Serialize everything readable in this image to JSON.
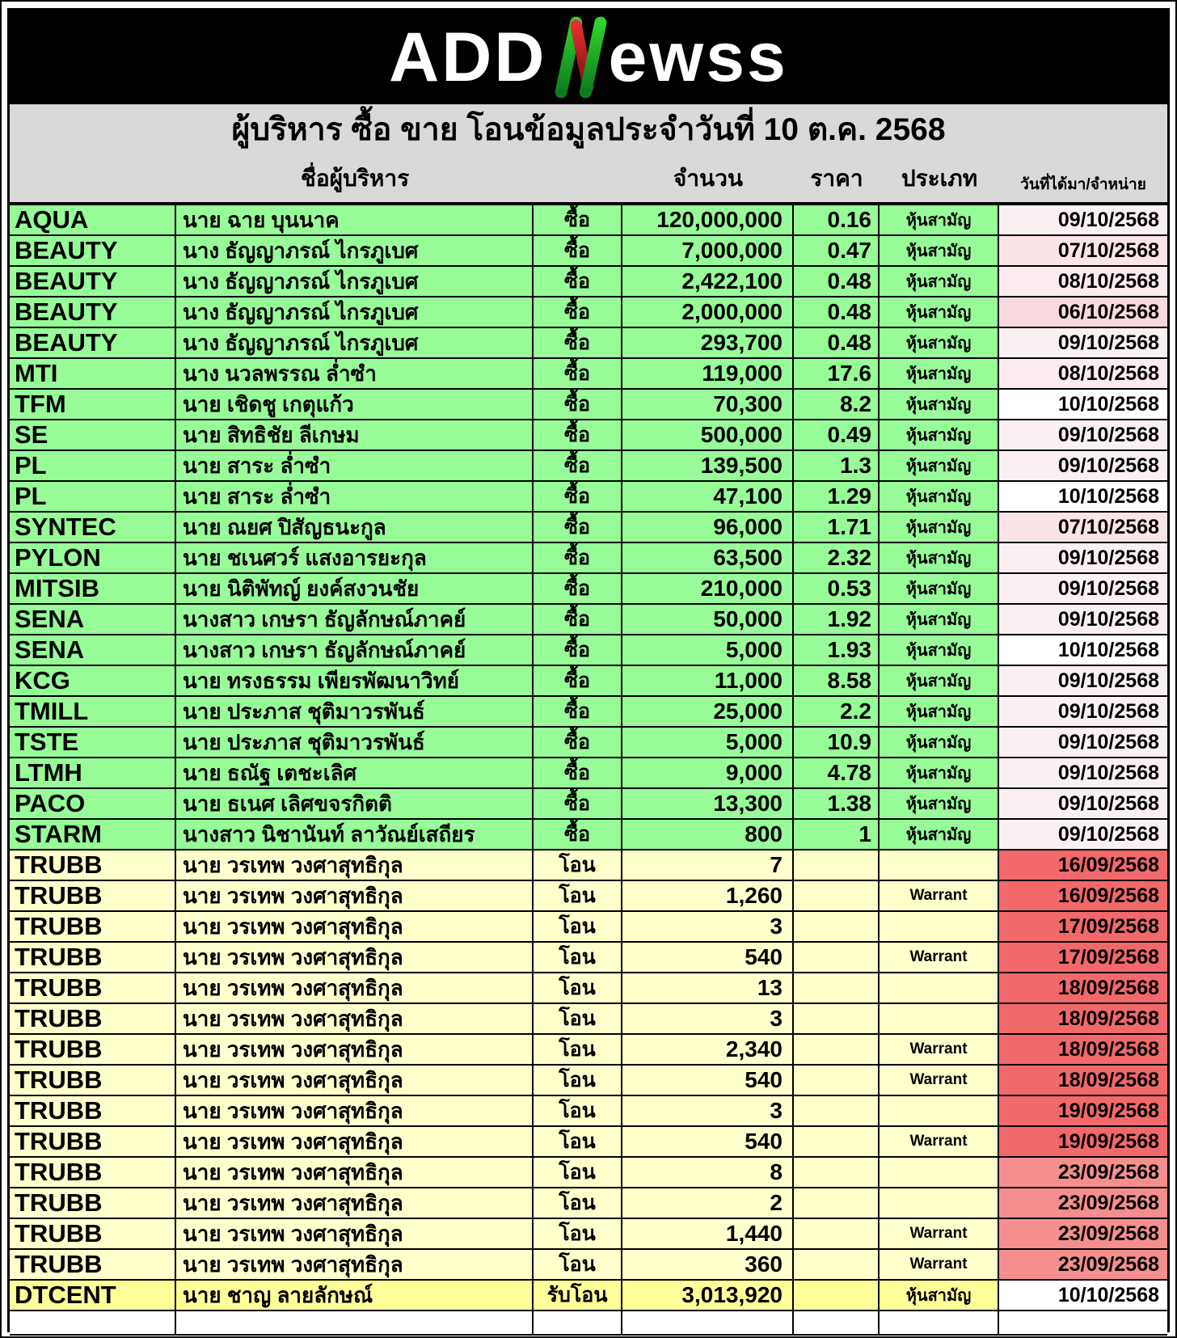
{
  "logo": {
    "left": "ADD",
    "right": "ewss"
  },
  "title": "ผู้บริหาร ซื้อ ขาย โอนข้อมูลประจำวันที่ 10 ต.ค. 2568",
  "columns": {
    "name": "ชื่อผู้บริหาร",
    "amount": "จำนวน",
    "price": "ราคา",
    "type": "ประเภท",
    "date": "วันที่ได้มา/จำหน่าย"
  },
  "colors": {
    "row_green": "#97FB98",
    "row_pale_yellow": "#FFFFCC",
    "row_bright_yellow": "#FFFF99",
    "header_gray": "#D9D9D9",
    "date_red": "#F2696B",
    "date_red_light": "#F58F8F",
    "logo_green": "#2FD32F",
    "logo_dark_green": "#0E7A1E",
    "logo_red": "#C22126"
  },
  "rows": [
    {
      "ticker": "AQUA",
      "name": "นาย ฉาย บุนนาค",
      "action": "ซื้อ",
      "amount": "120,000,000",
      "price": "0.16",
      "sec_type": "หุ้นสามัญ",
      "date": "09/10/2568",
      "row_bg": "#97FB98",
      "date_bg": "#FAF0F2"
    },
    {
      "ticker": "BEAUTY",
      "name": "นาง ธัญญาภรณ์ ไกรภูเบศ",
      "action": "ซื้อ",
      "amount": "7,000,000",
      "price": "0.47",
      "sec_type": "หุ้นสามัญ",
      "date": "07/10/2568",
      "row_bg": "#97FB98",
      "date_bg": "#FBE4E7"
    },
    {
      "ticker": "BEAUTY",
      "name": "นาง ธัญญาภรณ์ ไกรภูเบศ",
      "action": "ซื้อ",
      "amount": "2,422,100",
      "price": "0.48",
      "sec_type": "หุ้นสามัญ",
      "date": "08/10/2568",
      "row_bg": "#97FB98",
      "date_bg": "#FBEBEE"
    },
    {
      "ticker": "BEAUTY",
      "name": "นาง ธัญญาภรณ์ ไกรภูเบศ",
      "action": "ซื้อ",
      "amount": "2,000,000",
      "price": "0.48",
      "sec_type": "หุ้นสามัญ",
      "date": "06/10/2568",
      "row_bg": "#97FB98",
      "date_bg": "#F8D9DD"
    },
    {
      "ticker": "BEAUTY",
      "name": "นาง ธัญญาภรณ์ ไกรภูเบศ",
      "action": "ซื้อ",
      "amount": "293,700",
      "price": "0.48",
      "sec_type": "หุ้นสามัญ",
      "date": "09/10/2568",
      "row_bg": "#97FB98",
      "date_bg": "#FAF0F2"
    },
    {
      "ticker": "MTI",
      "name": "นาง นวลพรรณ ล่ำซำ",
      "action": "ซื้อ",
      "amount": "119,000",
      "price": "17.6",
      "sec_type": "หุ้นสามัญ",
      "date": "08/10/2568",
      "row_bg": "#97FB98",
      "date_bg": "#FBEBEE"
    },
    {
      "ticker": "TFM",
      "name": "นาย เชิดชู เกตุแก้ว",
      "action": "ซื้อ",
      "amount": "70,300",
      "price": "8.2",
      "sec_type": "หุ้นสามัญ",
      "date": "10/10/2568",
      "row_bg": "#97FB98",
      "date_bg": "#FFFFFF"
    },
    {
      "ticker": "SE",
      "name": "นาย สิทธิชัย ลีเกษม",
      "action": "ซื้อ",
      "amount": "500,000",
      "price": "0.49",
      "sec_type": "หุ้นสามัญ",
      "date": "09/10/2568",
      "row_bg": "#97FB98",
      "date_bg": "#FAF0F2"
    },
    {
      "ticker": "PL",
      "name": "นาย สาระ ล่ำซำ",
      "action": "ซื้อ",
      "amount": "139,500",
      "price": "1.3",
      "sec_type": "หุ้นสามัญ",
      "date": "09/10/2568",
      "row_bg": "#97FB98",
      "date_bg": "#FAF0F2"
    },
    {
      "ticker": "PL",
      "name": "นาย สาระ ล่ำซำ",
      "action": "ซื้อ",
      "amount": "47,100",
      "price": "1.29",
      "sec_type": "หุ้นสามัญ",
      "date": "10/10/2568",
      "row_bg": "#97FB98",
      "date_bg": "#FFFFFF"
    },
    {
      "ticker": "SYNTEC",
      "name": "นาย ณยศ ปิสัญธนะกูล",
      "action": "ซื้อ",
      "amount": "96,000",
      "price": "1.71",
      "sec_type": "หุ้นสามัญ",
      "date": "07/10/2568",
      "row_bg": "#97FB98",
      "date_bg": "#FBE4E7"
    },
    {
      "ticker": "PYLON",
      "name": "นาย ชเนศวร์ แสงอารยะกุล",
      "action": "ซื้อ",
      "amount": "63,500",
      "price": "2.32",
      "sec_type": "หุ้นสามัญ",
      "date": "09/10/2568",
      "row_bg": "#97FB98",
      "date_bg": "#FAF0F2"
    },
    {
      "ticker": "MITSIB",
      "name": "นาย นิติพัทญ์ ยงค์สงวนชัย",
      "action": "ซื้อ",
      "amount": "210,000",
      "price": "0.53",
      "sec_type": "หุ้นสามัญ",
      "date": "09/10/2568",
      "row_bg": "#97FB98",
      "date_bg": "#FAF0F2"
    },
    {
      "ticker": "SENA",
      "name": "นางสาว เกษรา ธัญลักษณ์ภาคย์",
      "action": "ซื้อ",
      "amount": "50,000",
      "price": "1.92",
      "sec_type": "หุ้นสามัญ",
      "date": "09/10/2568",
      "row_bg": "#97FB98",
      "date_bg": "#FAF0F2"
    },
    {
      "ticker": "SENA",
      "name": "นางสาว เกษรา ธัญลักษณ์ภาคย์",
      "action": "ซื้อ",
      "amount": "5,000",
      "price": "1.93",
      "sec_type": "หุ้นสามัญ",
      "date": "10/10/2568",
      "row_bg": "#97FB98",
      "date_bg": "#FFFFFF"
    },
    {
      "ticker": "KCG",
      "name": "นาย ทรงธรรม เพียรพัฒนาวิทย์",
      "action": "ซื้อ",
      "amount": "11,000",
      "price": "8.58",
      "sec_type": "หุ้นสามัญ",
      "date": "09/10/2568",
      "row_bg": "#97FB98",
      "date_bg": "#FAF0F2"
    },
    {
      "ticker": "TMILL",
      "name": "นาย ประภาส ชุติมาวรพันธ์",
      "action": "ซื้อ",
      "amount": "25,000",
      "price": "2.2",
      "sec_type": "หุ้นสามัญ",
      "date": "09/10/2568",
      "row_bg": "#97FB98",
      "date_bg": "#FAF0F2"
    },
    {
      "ticker": "TSTE",
      "name": "นาย ประภาส ชุติมาวรพันธ์",
      "action": "ซื้อ",
      "amount": "5,000",
      "price": "10.9",
      "sec_type": "หุ้นสามัญ",
      "date": "09/10/2568",
      "row_bg": "#97FB98",
      "date_bg": "#FAF0F2"
    },
    {
      "ticker": "LTMH",
      "name": "นาย ธณัฐ เตชะเลิศ",
      "action": "ซื้อ",
      "amount": "9,000",
      "price": "4.78",
      "sec_type": "หุ้นสามัญ",
      "date": "09/10/2568",
      "row_bg": "#97FB98",
      "date_bg": "#FAF0F2"
    },
    {
      "ticker": "PACO",
      "name": "นาย ธเนศ เลิศขจรกิตติ",
      "action": "ซื้อ",
      "amount": "13,300",
      "price": "1.38",
      "sec_type": "หุ้นสามัญ",
      "date": "09/10/2568",
      "row_bg": "#97FB98",
      "date_bg": "#FAF0F2"
    },
    {
      "ticker": "STARM",
      "name": "นางสาว นิชานันท์ ลาวัณย์เสถียร",
      "action": "ซื้อ",
      "amount": "800",
      "price": "1",
      "sec_type": "หุ้นสามัญ",
      "date": "09/10/2568",
      "row_bg": "#97FB98",
      "date_bg": "#FAF0F2"
    },
    {
      "ticker": "TRUBB",
      "name": "นาย วรเทพ วงศาสุทธิกุล",
      "action": "โอน",
      "amount": "7",
      "price": "",
      "sec_type": "",
      "date": "16/09/2568",
      "row_bg": "#FFFFCC",
      "date_bg": "#F2696B"
    },
    {
      "ticker": "TRUBB",
      "name": "นาย วรเทพ วงศาสุทธิกุล",
      "action": "โอน",
      "amount": "1,260",
      "price": "",
      "sec_type": "Warrant",
      "date": "16/09/2568",
      "row_bg": "#FFFFCC",
      "date_bg": "#F2696B"
    },
    {
      "ticker": "TRUBB",
      "name": "นาย วรเทพ วงศาสุทธิกุล",
      "action": "โอน",
      "amount": "3",
      "price": "",
      "sec_type": "",
      "date": "17/09/2568",
      "row_bg": "#FFFFCC",
      "date_bg": "#F2696B"
    },
    {
      "ticker": "TRUBB",
      "name": "นาย วรเทพ วงศาสุทธิกุล",
      "action": "โอน",
      "amount": "540",
      "price": "",
      "sec_type": "Warrant",
      "date": "17/09/2568",
      "row_bg": "#FFFFCC",
      "date_bg": "#F2696B"
    },
    {
      "ticker": "TRUBB",
      "name": "นาย วรเทพ วงศาสุทธิกุล",
      "action": "โอน",
      "amount": "13",
      "price": "",
      "sec_type": "",
      "date": "18/09/2568",
      "row_bg": "#FFFFCC",
      "date_bg": "#F2696B"
    },
    {
      "ticker": "TRUBB",
      "name": "นาย วรเทพ วงศาสุทธิกุล",
      "action": "โอน",
      "amount": "3",
      "price": "",
      "sec_type": "",
      "date": "18/09/2568",
      "row_bg": "#FFFFCC",
      "date_bg": "#F2696B"
    },
    {
      "ticker": "TRUBB",
      "name": "นาย วรเทพ วงศาสุทธิกุล",
      "action": "โอน",
      "amount": "2,340",
      "price": "",
      "sec_type": "Warrant",
      "date": "18/09/2568",
      "row_bg": "#FFFFCC",
      "date_bg": "#F2696B"
    },
    {
      "ticker": "TRUBB",
      "name": "นาย วรเทพ วงศาสุทธิกุล",
      "action": "โอน",
      "amount": "540",
      "price": "",
      "sec_type": "Warrant",
      "date": "18/09/2568",
      "row_bg": "#FFFFCC",
      "date_bg": "#F2696B"
    },
    {
      "ticker": "TRUBB",
      "name": "นาย วรเทพ วงศาสุทธิกุล",
      "action": "โอน",
      "amount": "3",
      "price": "",
      "sec_type": "",
      "date": "19/09/2568",
      "row_bg": "#FFFFCC",
      "date_bg": "#F2696B"
    },
    {
      "ticker": "TRUBB",
      "name": "นาย วรเทพ วงศาสุทธิกุล",
      "action": "โอน",
      "amount": "540",
      "price": "",
      "sec_type": "Warrant",
      "date": "19/09/2568",
      "row_bg": "#FFFFCC",
      "date_bg": "#F2696B"
    },
    {
      "ticker": "TRUBB",
      "name": "นาย วรเทพ วงศาสุทธิกุล",
      "action": "โอน",
      "amount": "8",
      "price": "",
      "sec_type": "",
      "date": "23/09/2568",
      "row_bg": "#FFFFCC",
      "date_bg": "#F58F8F"
    },
    {
      "ticker": "TRUBB",
      "name": "นาย วรเทพ วงศาสุทธิกุล",
      "action": "โอน",
      "amount": "2",
      "price": "",
      "sec_type": "",
      "date": "23/09/2568",
      "row_bg": "#FFFFCC",
      "date_bg": "#F58F8F"
    },
    {
      "ticker": "TRUBB",
      "name": "นาย วรเทพ วงศาสุทธิกุล",
      "action": "โอน",
      "amount": "1,440",
      "price": "",
      "sec_type": "Warrant",
      "date": "23/09/2568",
      "row_bg": "#FFFFCC",
      "date_bg": "#F58F8F"
    },
    {
      "ticker": "TRUBB",
      "name": "นาย วรเทพ วงศาสุทธิกุล",
      "action": "โอน",
      "amount": "360",
      "price": "",
      "sec_type": "Warrant",
      "date": "23/09/2568",
      "row_bg": "#FFFFCC",
      "date_bg": "#F58F8F"
    },
    {
      "ticker": "DTCENT",
      "name": "นาย ชาญ ลายลักษณ์",
      "action": "รับโอน",
      "amount": "3,013,920",
      "price": "",
      "sec_type": "หุ้นสามัญ",
      "date": "10/10/2568",
      "row_bg": "#FFFF99",
      "date_bg": "#FFFFFF"
    },
    {
      "empty": true,
      "row_bg": "#FFFFFF",
      "date_bg": "#FFFFFF"
    }
  ]
}
